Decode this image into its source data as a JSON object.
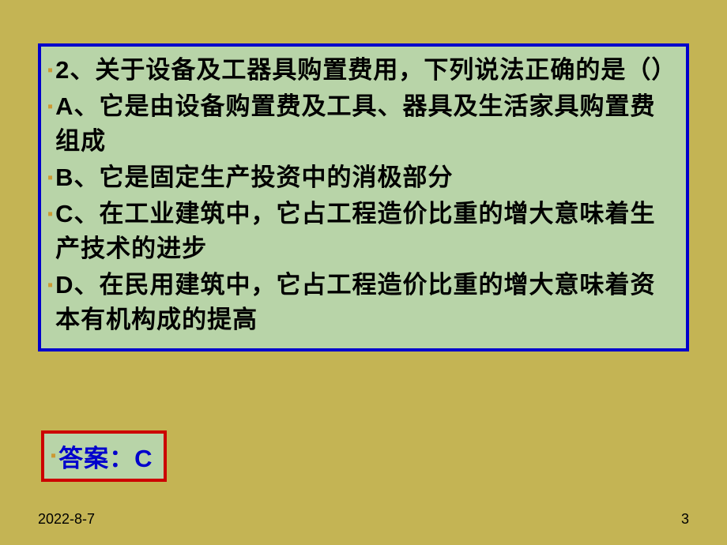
{
  "colors": {
    "background": "#c4b454",
    "question_box_bg": "#b8d4a8",
    "question_box_border": "#0000cc",
    "answer_box_bg": "#b8d4a8",
    "answer_box_border": "#cc0000",
    "bullet_color": "#cc9933",
    "text_color": "#000000",
    "answer_text_color": "#0000cc"
  },
  "question": {
    "stem": "2、关于设备及工器具购置费用，下列说法正确的是（）",
    "option_a": "A、它是由设备购置费及工具、器具及生活家具购置费组成",
    "option_b": "B、它是固定生产投资中的消极部分",
    "option_c": "C、在工业建筑中，它占工程造价比重的增大意味着生产技术的进步",
    "option_d": "D、在民用建筑中，它占工程造价比重的增大意味着资本有机构成的提高"
  },
  "answer": {
    "label": "答案：C"
  },
  "footer": {
    "date": "2022-8-7",
    "page": "3"
  },
  "typography": {
    "body_font_size": 31,
    "body_font_weight": "bold",
    "line_height": 44,
    "footer_font_size": 18
  }
}
